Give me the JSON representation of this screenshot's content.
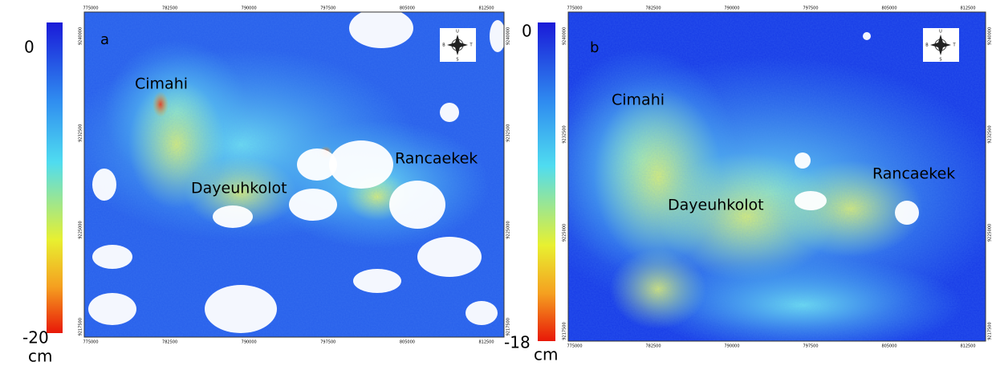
{
  "panels": [
    {
      "label": "a",
      "places": [
        "Cimahi",
        "Dayeuhkolot",
        "Rancaekek"
      ],
      "colorbar": {
        "top": 0,
        "bottom": -20,
        "unit": "cm"
      },
      "compass": [
        "U",
        "S",
        "B",
        "T"
      ],
      "x_ticks": [
        775000,
        782500,
        790000,
        797500,
        805000,
        812500
      ],
      "y_ticks": [
        9240000,
        9232500,
        9225000,
        9217500
      ]
    },
    {
      "label": "b",
      "places": [
        "Cimahi",
        "Dayeuhkolot",
        "Rancaekek"
      ],
      "colorbar": {
        "top": 0,
        "bottom": -18,
        "unit": "cm"
      },
      "compass": [
        "U",
        "S",
        "B",
        "T"
      ],
      "x_ticks": [
        775000,
        782500,
        790000,
        797500,
        805000,
        812500
      ],
      "y_ticks": [
        9240000,
        9232500,
        9225000,
        9217500
      ]
    }
  ]
}
